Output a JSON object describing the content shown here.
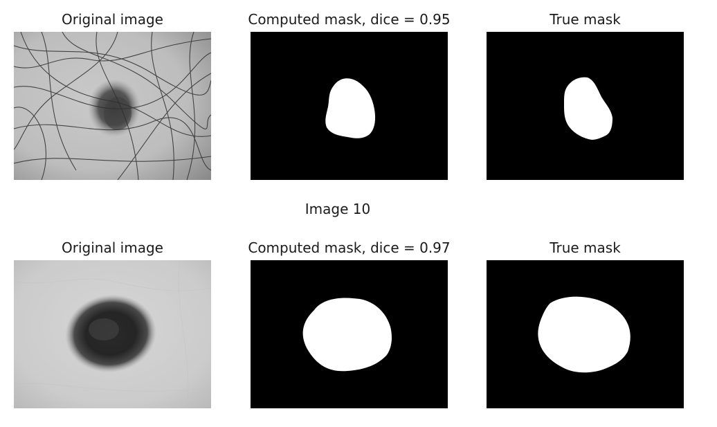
{
  "figure": {
    "rows": [
      {
        "original_title": "Original image",
        "computed_title": "Computed mask, dice = 0.95",
        "true_title": "True mask"
      },
      {
        "original_title": "Original image",
        "computed_title": "Computed mask, dice = 0.97",
        "true_title": "True mask"
      }
    ],
    "row2_suptitle": "Image 10"
  }
}
